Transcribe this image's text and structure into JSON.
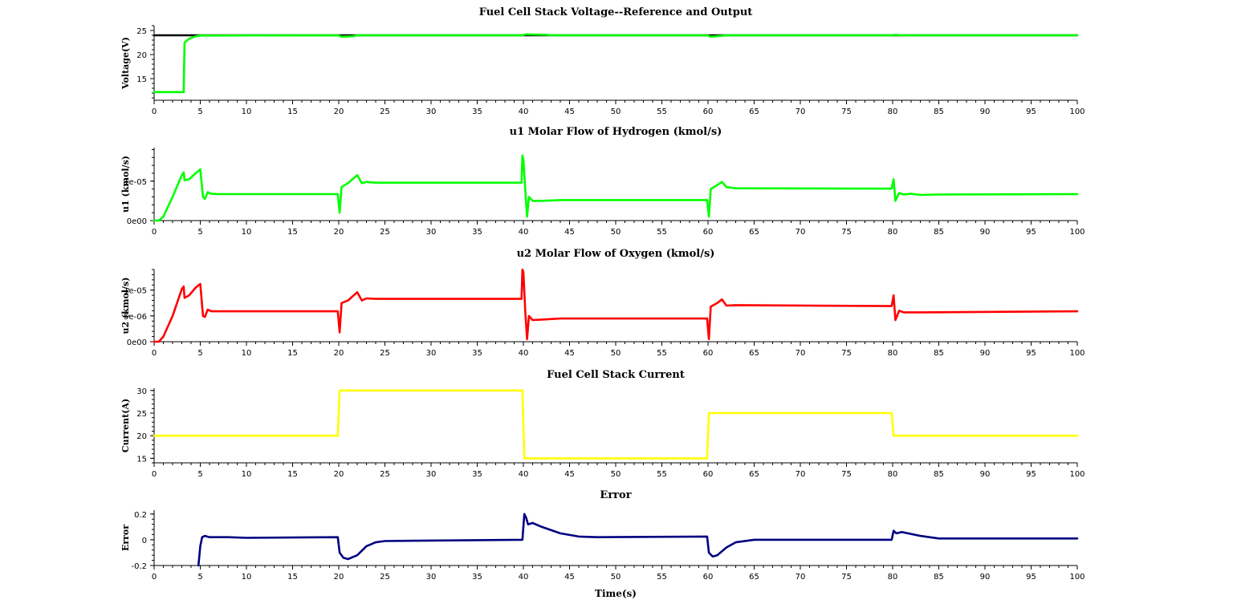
{
  "chart_data": [
    {
      "type": "line",
      "title": "Fuel Cell Stack Voltage--Reference and Output",
      "xlabel": "",
      "ylabel": "Voltage(V)",
      "xlim": [
        0,
        100
      ],
      "ylim": [
        10.5,
        26
      ],
      "xticks": [
        "0",
        "5",
        "10",
        "15",
        "20",
        "25",
        "30",
        "35",
        "40",
        "45",
        "50",
        "55",
        "60",
        "65",
        "70",
        "75",
        "80",
        "85",
        "90",
        "95",
        "100"
      ],
      "yticks": [
        {
          "v": 15,
          "label": "15"
        },
        {
          "v": 20,
          "label": "20"
        },
        {
          "v": 25,
          "label": "25"
        }
      ],
      "series": [
        {
          "color": "#000000",
          "points": [
            [
              0,
              24
            ],
            [
              5,
              24
            ],
            [
              100,
              24
            ]
          ]
        },
        {
          "color": "#00ff00",
          "points": [
            [
              0,
              12.2
            ],
            [
              3.2,
              12.2
            ],
            [
              3.3,
              22.5
            ],
            [
              3.8,
              23.3
            ],
            [
              4.5,
              23.8
            ],
            [
              5,
              23.95
            ],
            [
              19.9,
              24
            ],
            [
              20.3,
              23.7
            ],
            [
              21.5,
              23.8
            ],
            [
              22,
              24
            ],
            [
              39.9,
              24
            ],
            [
              40.3,
              24.2
            ],
            [
              42.5,
              24.1
            ],
            [
              43,
              24
            ],
            [
              59.9,
              24
            ],
            [
              60.3,
              23.7
            ],
            [
              61.5,
              23.9
            ],
            [
              62,
              24
            ],
            [
              79.9,
              24
            ],
            [
              80.3,
              24.1
            ],
            [
              81,
              24
            ],
            [
              100,
              24
            ]
          ]
        }
      ]
    },
    {
      "type": "line",
      "title": "u1 Molar Flow of Hydrogen (kmol/s)",
      "xlabel": "",
      "ylabel": "u1 (kmol/s)",
      "xlim": [
        0,
        100
      ],
      "ylim": [
        0,
        1.85e-05
      ],
      "xticks": [
        "0",
        "5",
        "10",
        "15",
        "20",
        "25",
        "30",
        "35",
        "40",
        "45",
        "50",
        "55",
        "60",
        "65",
        "70",
        "75",
        "80",
        "85",
        "90",
        "95",
        "100"
      ],
      "yticks": [
        {
          "v": 0,
          "label": "0e00"
        },
        {
          "v": 1e-05,
          "label": "1e-05"
        }
      ],
      "series": [
        {
          "color": "#00ff00",
          "points": [
            [
              0,
              0
            ],
            [
              0.5,
              0
            ],
            [
              1,
              1e-06
            ],
            [
              2,
              6e-06
            ],
            [
              3,
              1.15e-05
            ],
            [
              3.2,
              1.22e-05
            ],
            [
              3.3,
              1.02e-05
            ],
            [
              3.8,
              1.05e-05
            ],
            [
              4.5,
              1.2e-05
            ],
            [
              5,
              1.3e-05
            ],
            [
              5.3,
              6e-06
            ],
            [
              5.5,
              5.5e-06
            ],
            [
              5.8,
              7.2e-06
            ],
            [
              6.2,
              6.8e-06
            ],
            [
              7,
              6.7e-06
            ],
            [
              19.9,
              6.7e-06
            ],
            [
              20.1,
              2e-06
            ],
            [
              20.3,
              8.5e-06
            ],
            [
              21,
              9.5e-06
            ],
            [
              22,
              1.15e-05
            ],
            [
              22.5,
              9.5e-06
            ],
            [
              23,
              9.8e-06
            ],
            [
              24,
              9.6e-06
            ],
            [
              39.8,
              9.6e-06
            ],
            [
              39.9,
              1.65e-05
            ],
            [
              40,
              1.55e-05
            ],
            [
              40.2,
              8e-06
            ],
            [
              40.4,
              1e-06
            ],
            [
              40.6,
              6e-06
            ],
            [
              41,
              5e-06
            ],
            [
              42,
              5e-06
            ],
            [
              44,
              5.2e-06
            ],
            [
              59.9,
              5.2e-06
            ],
            [
              60.1,
              1e-06
            ],
            [
              60.3,
              8e-06
            ],
            [
              61,
              9e-06
            ],
            [
              61.5,
              9.8e-06
            ],
            [
              62,
              8.5e-06
            ],
            [
              63,
              8.2e-06
            ],
            [
              79.9,
              8.1e-06
            ],
            [
              80.1,
              1.05e-05
            ],
            [
              80.3,
              5e-06
            ],
            [
              80.7,
              7e-06
            ],
            [
              81.2,
              6.6e-06
            ],
            [
              82,
              6.8e-06
            ],
            [
              83,
              6.5e-06
            ],
            [
              85,
              6.6e-06
            ],
            [
              100,
              6.7e-06
            ]
          ]
        }
      ]
    },
    {
      "type": "line",
      "title": "u2 Molar Flow of Oxygen (kmol/s)",
      "xlabel": "",
      "ylabel": "u2 (kmol/s)",
      "xlim": [
        0,
        100
      ],
      "ylim": [
        0,
        1.4e-05
      ],
      "xticks": [
        "0",
        "5",
        "10",
        "15",
        "20",
        "25",
        "30",
        "35",
        "40",
        "45",
        "50",
        "55",
        "60",
        "65",
        "70",
        "75",
        "80",
        "85",
        "90",
        "95",
        "100"
      ],
      "yticks": [
        {
          "v": 0,
          "label": "0e00"
        },
        {
          "v": 5e-06,
          "label": "5e-06"
        },
        {
          "v": 1e-05,
          "label": "1e-05"
        }
      ],
      "series": [
        {
          "color": "#ff0000",
          "points": [
            [
              0,
              0
            ],
            [
              0.5,
              0
            ],
            [
              1,
              1e-06
            ],
            [
              2,
              5e-06
            ],
            [
              3,
              1.02e-05
            ],
            [
              3.2,
              1.07e-05
            ],
            [
              3.3,
              8.5e-06
            ],
            [
              3.8,
              9e-06
            ],
            [
              4.5,
              1.05e-05
            ],
            [
              5,
              1.12e-05
            ],
            [
              5.3,
              5e-06
            ],
            [
              5.5,
              4.8e-06
            ],
            [
              5.8,
              6.2e-06
            ],
            [
              6.2,
              5.9e-06
            ],
            [
              7,
              5.9e-06
            ],
            [
              19.9,
              5.9e-06
            ],
            [
              20.1,
              1.8e-06
            ],
            [
              20.3,
              7.5e-06
            ],
            [
              21,
              8e-06
            ],
            [
              22,
              9.6e-06
            ],
            [
              22.5,
              8e-06
            ],
            [
              23,
              8.4e-06
            ],
            [
              24,
              8.3e-06
            ],
            [
              39.8,
              8.3e-06
            ],
            [
              39.9,
              1.4e-05
            ],
            [
              40,
              1.35e-05
            ],
            [
              40.2,
              6e-06
            ],
            [
              40.4,
              5e-07
            ],
            [
              40.6,
              5e-06
            ],
            [
              41,
              4.2e-06
            ],
            [
              42,
              4.3e-06
            ],
            [
              44,
              4.5e-06
            ],
            [
              59.9,
              4.5e-06
            ],
            [
              60.1,
              5e-07
            ],
            [
              60.3,
              6.8e-06
            ],
            [
              61,
              7.5e-06
            ],
            [
              61.5,
              8.2e-06
            ],
            [
              62,
              7e-06
            ],
            [
              63,
              7.1e-06
            ],
            [
              79.9,
              6.9e-06
            ],
            [
              80.1,
              9e-06
            ],
            [
              80.3,
              4.2e-06
            ],
            [
              80.7,
              6e-06
            ],
            [
              81.2,
              5.7e-06
            ],
            [
              83,
              5.7e-06
            ],
            [
              100,
              5.9e-06
            ]
          ]
        }
      ]
    },
    {
      "type": "line",
      "title": "Fuel Cell Stack Current",
      "xlabel": "",
      "ylabel": "Current(A)",
      "xlim": [
        0,
        100
      ],
      "ylim": [
        14,
        30.5
      ],
      "xticks": [
        "0",
        "5",
        "10",
        "15",
        "20",
        "25",
        "30",
        "35",
        "40",
        "45",
        "50",
        "55",
        "60",
        "65",
        "70",
        "75",
        "80",
        "85",
        "90",
        "95",
        "100"
      ],
      "yticks": [
        {
          "v": 15,
          "label": "15"
        },
        {
          "v": 20,
          "label": "20"
        },
        {
          "v": 25,
          "label": "25"
        },
        {
          "v": 30,
          "label": "30"
        }
      ],
      "series": [
        {
          "color": "#ffff00",
          "points": [
            [
              0,
              20
            ],
            [
              19.9,
              20
            ],
            [
              20.1,
              30
            ],
            [
              39.9,
              30
            ],
            [
              40.1,
              15
            ],
            [
              59.9,
              15
            ],
            [
              60.1,
              25
            ],
            [
              79.9,
              25
            ],
            [
              80.1,
              20
            ],
            [
              100,
              20
            ]
          ]
        }
      ]
    },
    {
      "type": "line",
      "title": "Error",
      "xlabel": "Time(s)",
      "ylabel": "Error",
      "xlim": [
        0,
        100
      ],
      "ylim": [
        -0.2,
        0.23
      ],
      "xticks": [
        "0",
        "5",
        "10",
        "15",
        "20",
        "25",
        "30",
        "35",
        "40",
        "45",
        "50",
        "55",
        "60",
        "65",
        "70",
        "75",
        "80",
        "85",
        "90",
        "95",
        "100"
      ],
      "yticks": [
        {
          "v": -0.2,
          "label": "-0.2"
        },
        {
          "v": 0,
          "label": "0"
        },
        {
          "v": 0.2,
          "label": "0.2"
        }
      ],
      "series": [
        {
          "color": "#000080",
          "points": [
            [
              4.8,
              -0.2
            ],
            [
              5,
              -0.05
            ],
            [
              5.2,
              0.02
            ],
            [
              5.5,
              0.03
            ],
            [
              6,
              0.02
            ],
            [
              8,
              0.02
            ],
            [
              10,
              0.015
            ],
            [
              19.9,
              0.02
            ],
            [
              20.1,
              -0.1
            ],
            [
              20.5,
              -0.14
            ],
            [
              21,
              -0.15
            ],
            [
              22,
              -0.12
            ],
            [
              23,
              -0.05
            ],
            [
              24,
              -0.02
            ],
            [
              25,
              -0.01
            ],
            [
              39.9,
              0
            ],
            [
              40.1,
              0.2
            ],
            [
              40.3,
              0.17
            ],
            [
              40.5,
              0.12
            ],
            [
              41,
              0.13
            ],
            [
              42,
              0.1
            ],
            [
              44,
              0.05
            ],
            [
              46,
              0.025
            ],
            [
              48,
              0.02
            ],
            [
              59.9,
              0.025
            ],
            [
              60.1,
              -0.1
            ],
            [
              60.5,
              -0.13
            ],
            [
              61,
              -0.12
            ],
            [
              62,
              -0.06
            ],
            [
              63,
              -0.02
            ],
            [
              65,
              0
            ],
            [
              79.9,
              0
            ],
            [
              80.1,
              0.07
            ],
            [
              80.4,
              0.05
            ],
            [
              81,
              0.06
            ],
            [
              83,
              0.03
            ],
            [
              85,
              0.01
            ],
            [
              100,
              0.01
            ]
          ]
        }
      ]
    }
  ]
}
